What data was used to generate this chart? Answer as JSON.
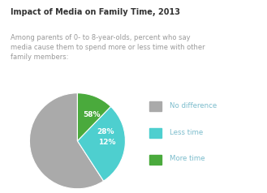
{
  "title": "Impact of Media on Family Time, 2013",
  "subtitle": "Among parents of 0- to 8-year-olds, percent who say\nmedia cause them to spend more or less time with other\nfamily members:",
  "slices": [
    58,
    28,
    12
  ],
  "labels": [
    "58%",
    "28%",
    "12%"
  ],
  "colors": [
    "#aaaaaa",
    "#4ecfcf",
    "#4aaa3c"
  ],
  "legend_labels": [
    "No difference",
    "Less time",
    "More time"
  ],
  "legend_colors": [
    "#aaaaaa",
    "#4ecfcf",
    "#4aaa3c"
  ],
  "title_color": "#333333",
  "subtitle_color": "#999999",
  "legend_text_color": "#7bbccc",
  "background_color": "#ffffff",
  "top_bar_color": "#6ecfb0",
  "start_angle": 90
}
